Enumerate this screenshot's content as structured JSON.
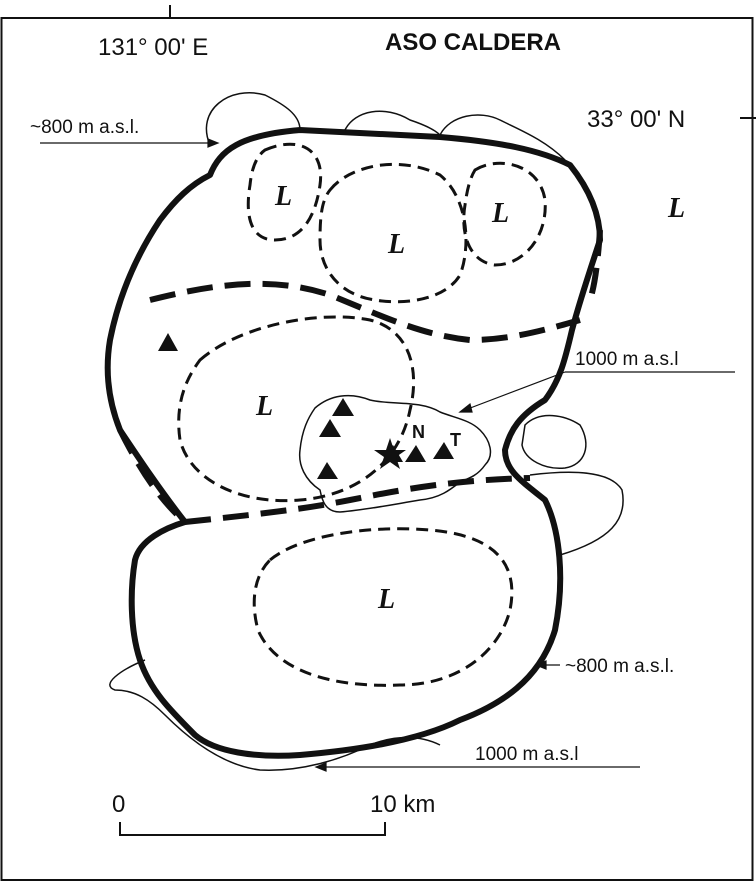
{
  "title": "ASO CALDERA",
  "coords": {
    "longitude": "131° 00' E",
    "latitude": "33° 00' N"
  },
  "elevation_labels": {
    "top_left": "~800 m a.s.l.",
    "right_middle": "1000 m a.s.l",
    "right_lower": "~800 m a.s.l.",
    "bottom": "1000 m a.s.l"
  },
  "lake_label": "L",
  "vents": {
    "n": "N",
    "t": "T"
  },
  "scale_bar": {
    "start": "0",
    "end": "10 km"
  },
  "colors": {
    "ink": "#111111",
    "background": "#ffffff"
  }
}
